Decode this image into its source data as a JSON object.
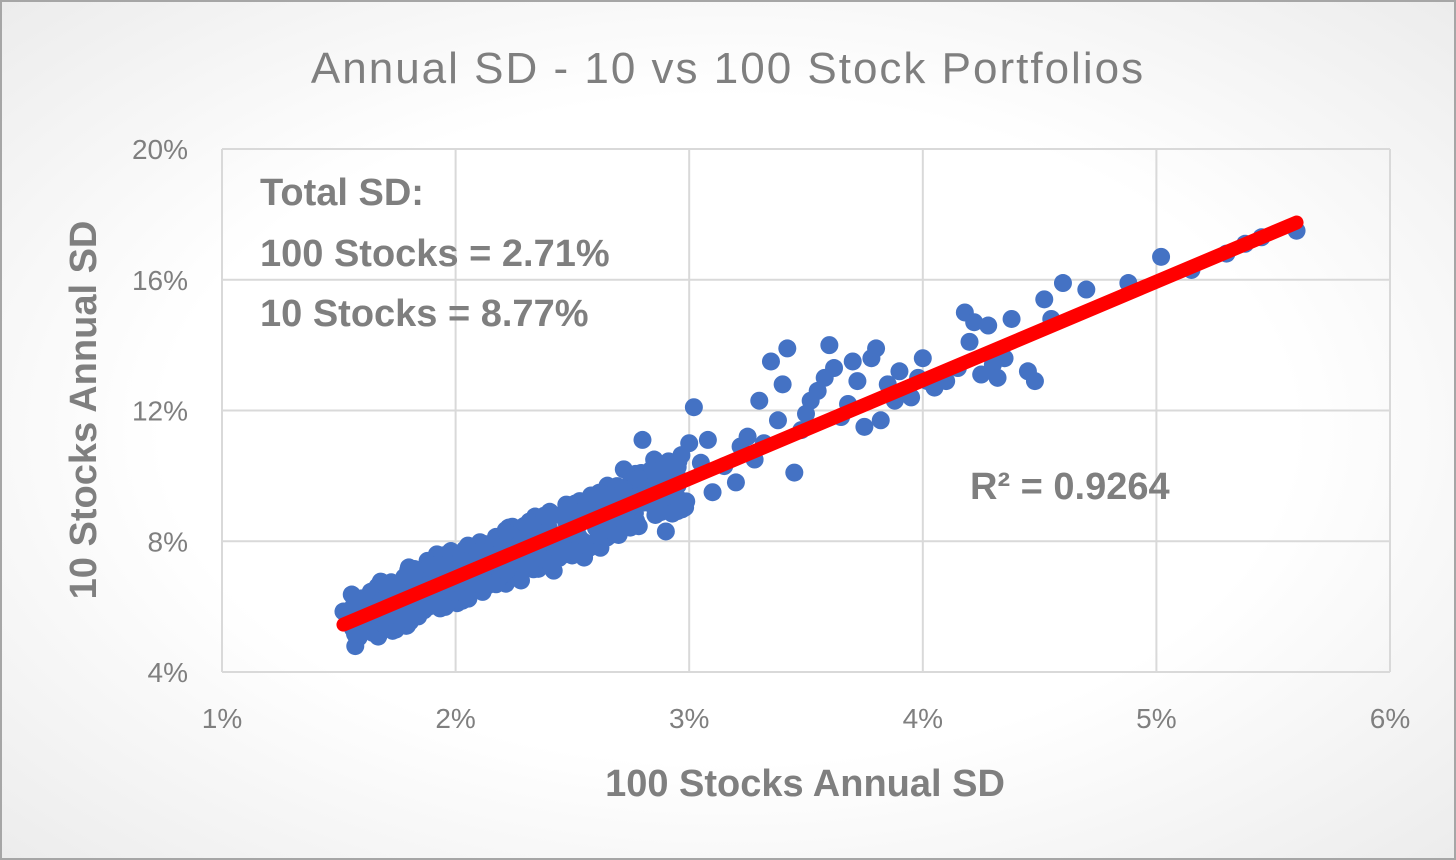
{
  "chart_data": {
    "type": "scatter",
    "title": "Annual SD - 10 vs 100 Stock Portfolios",
    "xlabel": "100 Stocks Annual SD",
    "ylabel": "10 Stocks Annual SD",
    "xlim": [
      1,
      6
    ],
    "ylim": [
      4,
      20
    ],
    "x_ticks": [
      1,
      2,
      3,
      4,
      5,
      6
    ],
    "y_ticks": [
      4,
      8,
      12,
      16,
      20
    ],
    "x_tick_labels": [
      "1%",
      "2%",
      "3%",
      "4%",
      "5%",
      "6%"
    ],
    "y_tick_labels": [
      "4%",
      "8%",
      "12%",
      "16%",
      "20%"
    ],
    "grid": true,
    "series": [
      {
        "name": "Portfolios",
        "color": "#4472c4",
        "points": [
          [
            1.52,
            5.85
          ],
          [
            1.58,
            6.0
          ],
          [
            1.62,
            5.8
          ],
          [
            1.65,
            6.3
          ],
          [
            1.68,
            5.95
          ],
          [
            1.72,
            6.6
          ],
          [
            1.75,
            6.2
          ],
          [
            1.78,
            6.9
          ],
          [
            1.8,
            7.2
          ],
          [
            1.82,
            6.5
          ],
          [
            1.84,
            5.7
          ],
          [
            1.86,
            6.8
          ],
          [
            1.88,
            7.4
          ],
          [
            1.9,
            6.1
          ],
          [
            1.92,
            7.6
          ],
          [
            1.94,
            6.9
          ],
          [
            1.96,
            6.4
          ],
          [
            1.98,
            7.7
          ],
          [
            2.0,
            7.0
          ],
          [
            2.02,
            6.6
          ],
          [
            2.05,
            7.3
          ],
          [
            2.08,
            7.8
          ],
          [
            2.1,
            6.9
          ],
          [
            2.12,
            7.5
          ],
          [
            2.15,
            6.7
          ],
          [
            2.18,
            7.9
          ],
          [
            2.2,
            7.2
          ],
          [
            2.22,
            8.3
          ],
          [
            2.25,
            7.6
          ],
          [
            2.28,
            6.8
          ],
          [
            2.3,
            8.0
          ],
          [
            2.32,
            7.4
          ],
          [
            2.35,
            8.6
          ],
          [
            2.38,
            7.7
          ],
          [
            2.4,
            8.2
          ],
          [
            2.42,
            7.1
          ],
          [
            2.45,
            8.8
          ],
          [
            2.48,
            7.9
          ],
          [
            2.5,
            9.1
          ],
          [
            2.52,
            8.4
          ],
          [
            2.55,
            7.5
          ],
          [
            2.58,
            9.4
          ],
          [
            2.6,
            8.6
          ],
          [
            2.62,
            7.8
          ],
          [
            2.65,
            9.7
          ],
          [
            2.68,
            9.0
          ],
          [
            2.7,
            8.3
          ],
          [
            2.72,
            10.2
          ],
          [
            2.75,
            9.3
          ],
          [
            2.78,
            8.5
          ],
          [
            2.8,
            11.1
          ],
          [
            2.82,
            9.8
          ],
          [
            2.85,
            10.5
          ],
          [
            2.88,
            8.9
          ],
          [
            2.9,
            8.3
          ],
          [
            2.95,
            9.7
          ],
          [
            3.0,
            11.0
          ],
          [
            3.02,
            12.1
          ],
          [
            3.05,
            10.4
          ],
          [
            3.08,
            11.1
          ],
          [
            3.1,
            9.5
          ],
          [
            3.15,
            10.3
          ],
          [
            3.2,
            9.8
          ],
          [
            3.22,
            10.9
          ],
          [
            3.25,
            11.2
          ],
          [
            3.28,
            10.5
          ],
          [
            3.3,
            12.3
          ],
          [
            3.32,
            11.0
          ],
          [
            3.35,
            13.5
          ],
          [
            3.38,
            11.7
          ],
          [
            3.4,
            12.8
          ],
          [
            3.42,
            13.9
          ],
          [
            3.45,
            10.1
          ],
          [
            3.48,
            11.4
          ],
          [
            3.5,
            11.9
          ],
          [
            3.52,
            12.3
          ],
          [
            3.55,
            12.6
          ],
          [
            3.58,
            13.0
          ],
          [
            3.6,
            14.0
          ],
          [
            3.62,
            13.3
          ],
          [
            3.65,
            11.8
          ],
          [
            3.68,
            12.2
          ],
          [
            3.7,
            13.5
          ],
          [
            3.72,
            12.9
          ],
          [
            3.75,
            11.5
          ],
          [
            3.78,
            13.6
          ],
          [
            3.8,
            13.9
          ],
          [
            3.82,
            11.7
          ],
          [
            3.85,
            12.8
          ],
          [
            3.88,
            12.3
          ],
          [
            3.9,
            13.2
          ],
          [
            3.92,
            12.6
          ],
          [
            3.95,
            12.4
          ],
          [
            3.98,
            13.0
          ],
          [
            4.0,
            13.6
          ],
          [
            4.02,
            12.9
          ],
          [
            4.05,
            12.7
          ],
          [
            4.1,
            12.9
          ],
          [
            4.15,
            13.3
          ],
          [
            4.18,
            15.0
          ],
          [
            4.2,
            14.1
          ],
          [
            4.22,
            14.7
          ],
          [
            4.25,
            13.1
          ],
          [
            4.28,
            14.6
          ],
          [
            4.3,
            13.4
          ],
          [
            4.32,
            13.0
          ],
          [
            4.35,
            13.6
          ],
          [
            4.38,
            14.8
          ],
          [
            4.45,
            13.2
          ],
          [
            4.48,
            12.9
          ],
          [
            4.52,
            15.4
          ],
          [
            4.55,
            14.8
          ],
          [
            4.6,
            15.9
          ],
          [
            4.7,
            15.7
          ],
          [
            4.88,
            15.9
          ],
          [
            5.02,
            16.7
          ],
          [
            5.15,
            16.3
          ],
          [
            5.3,
            16.8
          ],
          [
            5.38,
            17.1
          ],
          [
            5.45,
            17.3
          ],
          [
            5.6,
            17.5
          ]
        ]
      }
    ],
    "trendline": {
      "x1": 1.52,
      "y1": 5.45,
      "x2": 5.6,
      "y2": 17.75,
      "color": "#ff0000"
    },
    "annotations": {
      "total_sd_heading": "Total SD:",
      "total_sd_100": "100 Stocks = 2.71%",
      "total_sd_10": "10 Stocks = 8.77%",
      "r_squared": "R² = 0.9264"
    }
  }
}
